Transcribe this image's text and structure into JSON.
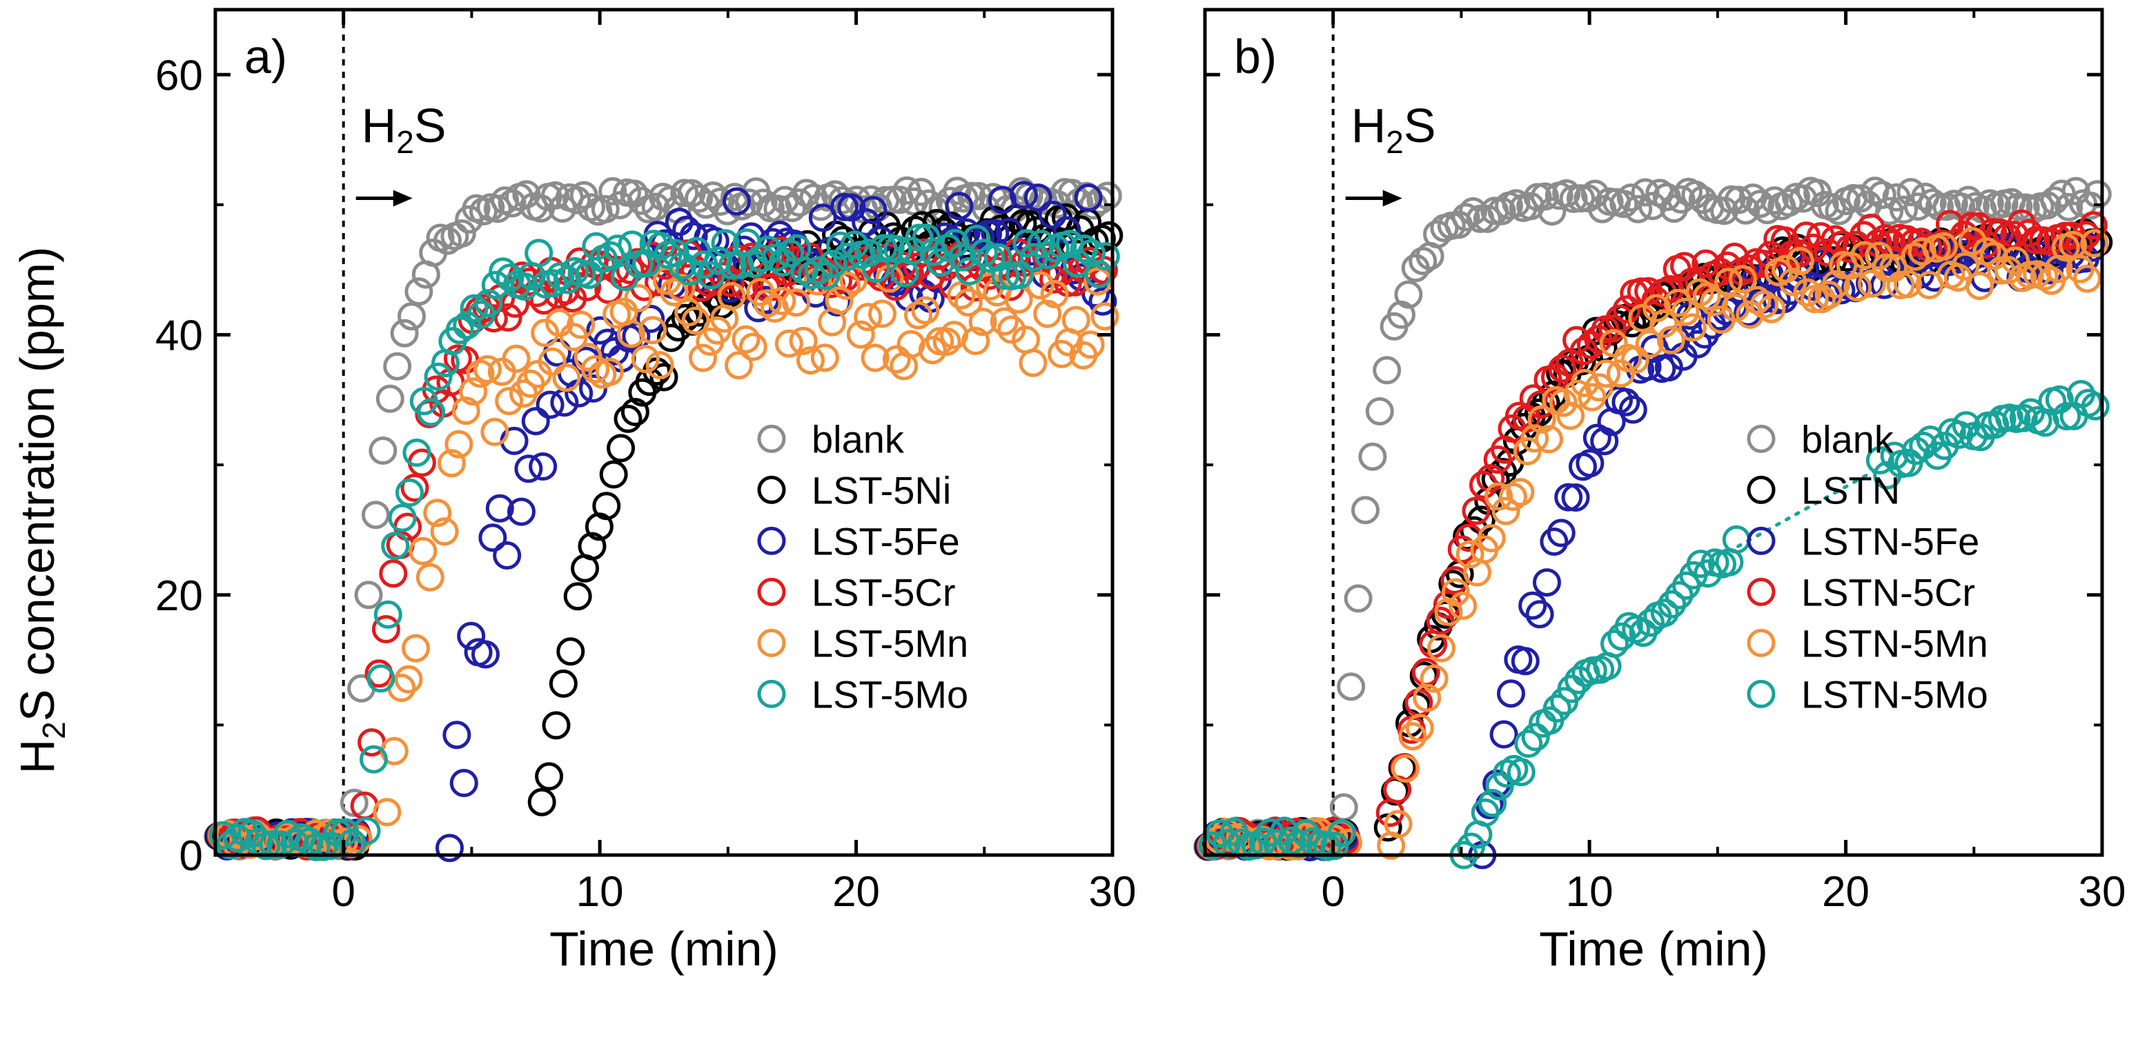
{
  "ylabel": {
    "main": "H",
    "sub": "2",
    "rest": "S concentration (ppm)"
  },
  "chart_data": [
    {
      "type": "scatter",
      "panel_label": "a)",
      "xlabel": "Time (min)",
      "xlim": [
        -5,
        30
      ],
      "ylim": [
        0,
        65
      ],
      "xticks": [
        0,
        10,
        20,
        30
      ],
      "xtick_labels": [
        "0",
        "10",
        "20",
        "30"
      ],
      "yticks": [
        0,
        20,
        40,
        60
      ],
      "ytick_labels": [
        "0",
        "20",
        "40",
        "60"
      ],
      "annotation": {
        "main": "H",
        "sub": "2",
        "rest": "S",
        "x": 0,
        "y": 50.5
      },
      "vline_x": 0,
      "legend_position": "lower-right",
      "series": [
        {
          "name": "blank",
          "color": "#8c8c8c",
          "start": 0.3,
          "tau": 1.3,
          "plateau": 50.3,
          "noise": 0.8
        },
        {
          "name": "LST-5Ni",
          "color": "#000000",
          "start": 7.5,
          "tau": 3.2,
          "plateau": 48,
          "noise": 1.2
        },
        {
          "name": "LST-5Fe",
          "color": "#1f1fa8",
          "start": 4.0,
          "tau": 3.0,
          "plateau": 47,
          "noise": 4.5
        },
        {
          "name": "LST-5Cr",
          "color": "#e31a1c",
          "start": 0.7,
          "tau": 2.0,
          "plateau": 45,
          "noise": 1.5
        },
        {
          "name": "LST-5Mn",
          "color": "#f4913a",
          "start": 1.5,
          "tau": 2.2,
          "plateau": 41,
          "noise": 3.5
        },
        {
          "name": "LST-5Mo",
          "color": "#17a39a",
          "start": 0.8,
          "tau": 1.8,
          "plateau": 46,
          "noise": 1.5
        }
      ]
    },
    {
      "type": "scatter",
      "panel_label": "b)",
      "xlabel": "Time (min)",
      "xlim": [
        -5,
        30
      ],
      "ylim": [
        0,
        65
      ],
      "xticks": [
        0,
        10,
        20,
        30
      ],
      "xtick_labels": [
        "0",
        "10",
        "20",
        "30"
      ],
      "yticks": [
        0,
        20,
        40,
        60
      ],
      "ytick_labels": [
        "",
        "",
        "",
        ""
      ],
      "annotation": {
        "main": "H",
        "sub": "2",
        "rest": "S",
        "x": 0,
        "y": 50.5
      },
      "vline_x": 0,
      "legend_position": "lower-right",
      "series": [
        {
          "name": "blank",
          "color": "#8c8c8c",
          "start": 0.3,
          "tau": 1.3,
          "plateau": 50.3,
          "noise": 0.8
        },
        {
          "name": "LSTN",
          "color": "#000000",
          "start": 2.0,
          "tau": 4.5,
          "plateau": 47,
          "noise": 1.0
        },
        {
          "name": "LSTN-5Fe",
          "color": "#1f1fa8",
          "start": 5.8,
          "tau": 4.0,
          "plateau": 46,
          "noise": 1.5
        },
        {
          "name": "LSTN-5Cr",
          "color": "#e31a1c",
          "start": 2.0,
          "tau": 4.5,
          "plateau": 48,
          "noise": 1.0
        },
        {
          "name": "LSTN-5Mn",
          "color": "#f4913a",
          "start": 2.2,
          "tau": 5.0,
          "plateau": 46,
          "noise": 1.8
        },
        {
          "name": "LSTN-5Mo",
          "color": "#17a39a",
          "start": 5.0,
          "tau": 12.0,
          "plateau": 40,
          "noise": 0.8,
          "gap": [
            15.8,
            21.2
          ]
        }
      ]
    }
  ]
}
